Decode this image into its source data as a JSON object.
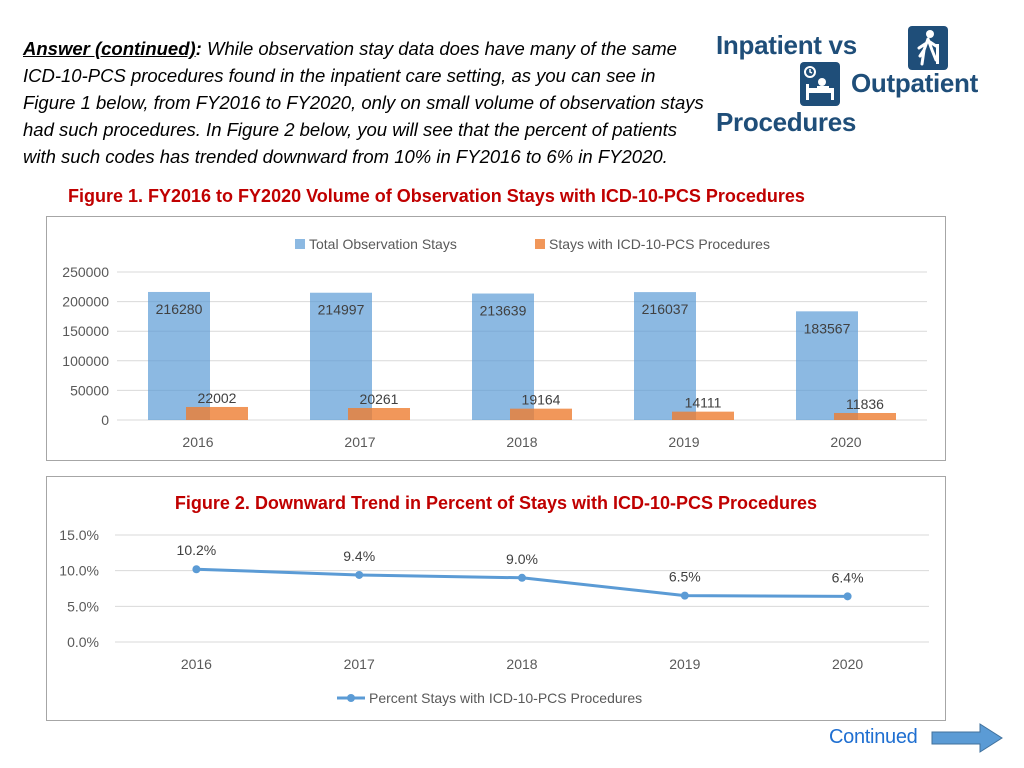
{
  "header": {
    "lead": "Answer (continued)",
    "lead_colon": ":",
    "body": " While observation stay data does have many of  the same ICD-10-PCS procedures found in the inpatient care setting, as you can see in Figure 1 below, from FY2016 to FY2020, only on small volume of observation stays had such procedures. In Figure 2 below, you will see that the percent of patients with such codes has trended downward from 10% in FY2016 to 6% in FY2020.",
    "title_line1": "Inpatient vs",
    "title_line2": "Outpatient",
    "title_line3": "Procedures",
    "walk_icon": "walking-person-icon",
    "bed_icon": "hospital-bed-icon"
  },
  "figure1_title": "Figure 1. FY2016 to FY2020 Volume of Observation Stays with ICD-10-PCS Procedures",
  "chart_data": [
    {
      "type": "bar",
      "title": "Figure 1. FY2016 to FY2020 Volume of Observation Stays with ICD-10-PCS Procedures",
      "categories": [
        "2016",
        "2017",
        "2018",
        "2019",
        "2020"
      ],
      "series": [
        {
          "name": "Total Observation Stays",
          "values": [
            216280,
            214997,
            213639,
            216037,
            183567
          ],
          "color": "#5b9bd5"
        },
        {
          "name": "Stays with ICD-10-PCS Procedures",
          "values": [
            22002,
            20261,
            19164,
            14111,
            11836
          ],
          "color": "#ed7d31"
        }
      ],
      "value_labels": {
        "Total Observation Stays": [
          "216280",
          "214997",
          "213639",
          "216037",
          "183567"
        ],
        "Stays with ICD-10-PCS Procedures": [
          "22002",
          "20261",
          "19164",
          "14111",
          "11836"
        ]
      },
      "ylim": [
        0,
        250000
      ],
      "yticks": [
        0,
        50000,
        100000,
        150000,
        200000,
        250000
      ],
      "ytick_labels": [
        "0",
        "50000",
        "100000",
        "150000",
        "200000",
        "250000"
      ],
      "legend": "top",
      "grid": true
    },
    {
      "type": "line",
      "title": "Figure 2. Downward Trend in Percent of Stays with ICD-10-PCS Procedures",
      "categories": [
        "2016",
        "2017",
        "2018",
        "2019",
        "2020"
      ],
      "series": [
        {
          "name": "Percent Stays with ICD-10-PCS Procedures",
          "values": [
            10.2,
            9.4,
            9.0,
            6.5,
            6.4
          ],
          "color": "#5b9bd5"
        }
      ],
      "value_labels": [
        "10.2%",
        "9.4%",
        "9.0%",
        "6.5%",
        "6.4%"
      ],
      "ylim": [
        0,
        15
      ],
      "yticks": [
        0,
        5,
        10,
        15
      ],
      "ytick_labels": [
        "0.0%",
        "5.0%",
        "10.0%",
        "15.0%"
      ],
      "legend": "bottom",
      "grid": true
    }
  ],
  "footer": {
    "continued_label": "Continued",
    "arrow_icon": "right-arrow-icon"
  }
}
